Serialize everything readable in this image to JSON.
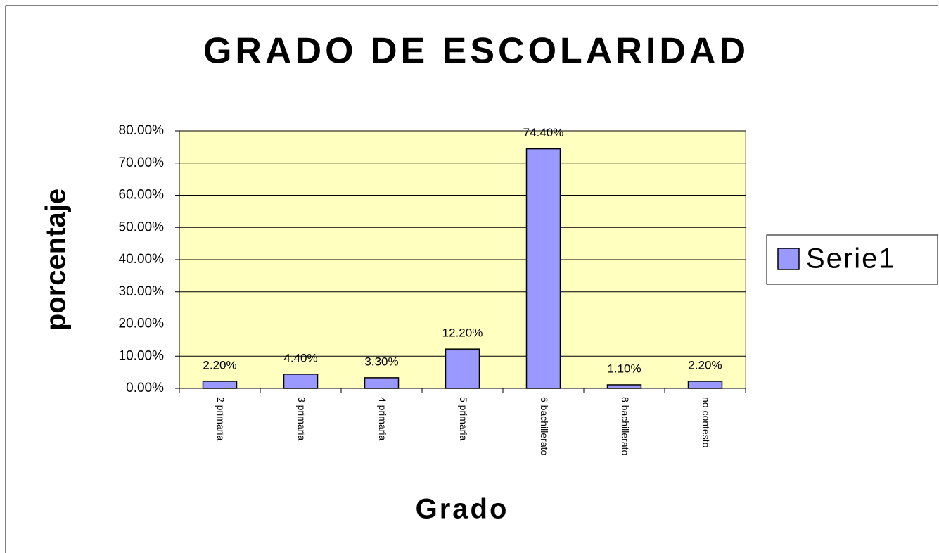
{
  "chart_data": {
    "type": "bar",
    "title": "GRADO DE ESCOLARIDAD",
    "x_label": "Grado",
    "y_label": "porcentaje",
    "categories": [
      "2 primaria",
      "3 primaria",
      "4 primaria",
      "5 primaria",
      "6 bachillerato",
      "8 bachillerato",
      "no contesto"
    ],
    "series": [
      {
        "name": "Serie1",
        "color": "#9999ff",
        "values": [
          2.2,
          4.4,
          3.3,
          12.2,
          74.4,
          1.1,
          2.2
        ],
        "value_labels": [
          "2.20%",
          "4.40%",
          "3.30%",
          "12.20%",
          "74.40%",
          "1.10%",
          "2.20%"
        ]
      }
    ],
    "ylim": [
      0,
      80
    ],
    "yticks": [
      {
        "value": 0,
        "label": "0.00%"
      },
      {
        "value": 10,
        "label": "10.00%"
      },
      {
        "value": 20,
        "label": "20.00%"
      },
      {
        "value": 30,
        "label": "30.00%"
      },
      {
        "value": 40,
        "label": "40.00%"
      },
      {
        "value": 50,
        "label": "50.00%"
      },
      {
        "value": 60,
        "label": "60.00%"
      },
      {
        "value": 70,
        "label": "70.00%"
      },
      {
        "value": 80,
        "label": "80.00%"
      }
    ],
    "grid": true,
    "legend": "right"
  }
}
